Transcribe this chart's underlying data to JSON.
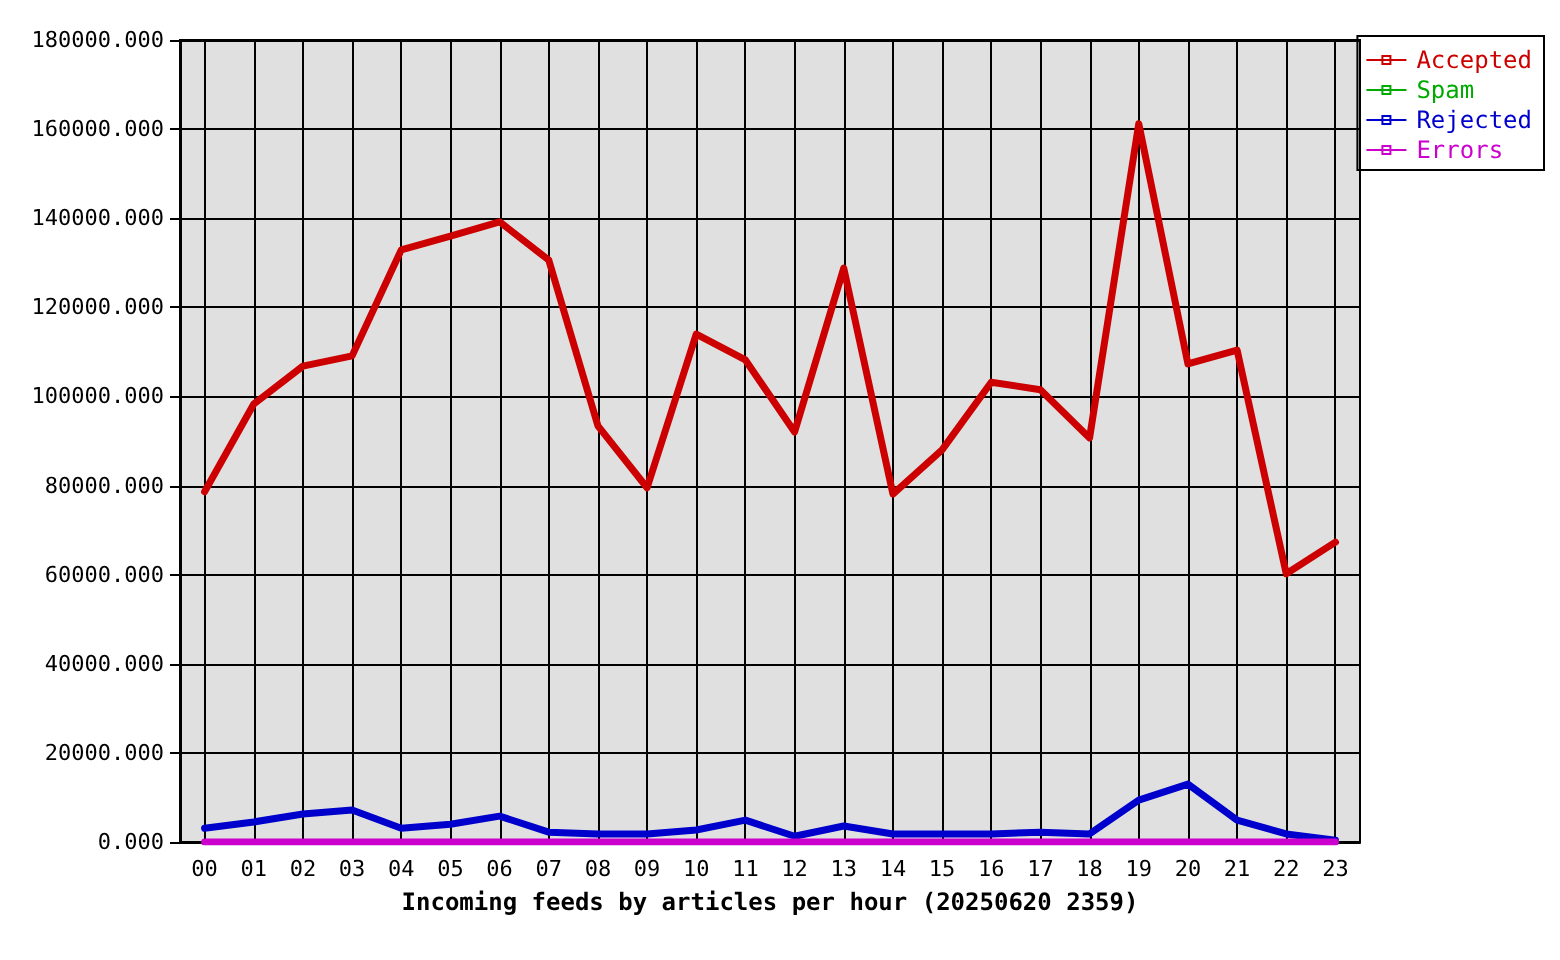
{
  "chart_data": {
    "type": "line",
    "xlabel": "Incoming feeds by articles per hour (20250620 2359)",
    "categories": [
      "00",
      "01",
      "02",
      "03",
      "04",
      "05",
      "06",
      "07",
      "08",
      "09",
      "10",
      "11",
      "12",
      "13",
      "14",
      "15",
      "16",
      "17",
      "18",
      "19",
      "20",
      "21",
      "22",
      "23"
    ],
    "series": [
      {
        "name": "Accepted",
        "color": "#cc0000",
        "values": [
          78600,
          98300,
          106800,
          109100,
          132900,
          136000,
          139200,
          130600,
          93400,
          79500,
          114000,
          108200,
          92000,
          128800,
          78100,
          88000,
          103200,
          101500,
          90700,
          161200,
          107300,
          110400,
          60200,
          67300
        ]
      },
      {
        "name": "Spam",
        "color": "#00aa00",
        "values": [
          null,
          null,
          null,
          null,
          null,
          null,
          null,
          null,
          null,
          null,
          null,
          null,
          null,
          null,
          null,
          null,
          null,
          null,
          null,
          null,
          null,
          null,
          null,
          null
        ]
      },
      {
        "name": "Rejected",
        "color": "#0000cc",
        "values": [
          3100,
          4500,
          6300,
          7200,
          3100,
          4000,
          5800,
          2200,
          1800,
          1800,
          2700,
          4900,
          1300,
          3600,
          1800,
          1800,
          1800,
          2200,
          1800,
          9400,
          13000,
          4900,
          1800,
          400
        ]
      },
      {
        "name": "Errors",
        "color": "#cc00cc",
        "values": [
          0,
          0,
          0,
          0,
          0,
          0,
          0,
          0,
          0,
          0,
          0,
          0,
          0,
          0,
          0,
          0,
          0,
          0,
          0,
          0,
          0,
          0,
          0,
          0
        ]
      }
    ],
    "ylim": [
      0,
      180000
    ],
    "yticks": [
      {
        "value": 0,
        "label": "0.000"
      },
      {
        "value": 20000,
        "label": "20000.000"
      },
      {
        "value": 40000,
        "label": "40000.000"
      },
      {
        "value": 60000,
        "label": "60000.000"
      },
      {
        "value": 80000,
        "label": "80000.000"
      },
      {
        "value": 100000,
        "label": "100000.000"
      },
      {
        "value": 120000,
        "label": "120000.000"
      },
      {
        "value": 140000,
        "label": "140000.000"
      },
      {
        "value": 160000,
        "label": "160000.000"
      },
      {
        "value": 180000,
        "label": "180000.000"
      }
    ],
    "grid": true,
    "legend": "top right",
    "marker": "none",
    "line_style": "solid"
  }
}
